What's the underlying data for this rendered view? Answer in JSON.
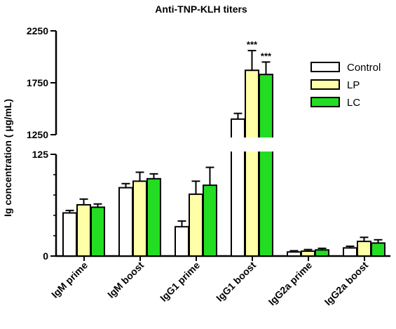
{
  "chart_data": {
    "type": "bar",
    "title": "Anti-TNP-KLH titers",
    "ylabel": "Ig concentration ( μg/mL)",
    "xlabel": "",
    "categories": [
      "IgM prime",
      "IgM boost",
      "IgG1 prime",
      "IgG1 boost",
      "IgG2a prime",
      "IgG2a boost"
    ],
    "series": [
      {
        "name": "Control",
        "color": "#ffffff",
        "values": [
          53,
          84,
          36,
          1400,
          5,
          10
        ],
        "errors": [
          3,
          5,
          7,
          55,
          1.5,
          2
        ]
      },
      {
        "name": "LP",
        "color": "#ffffa8",
        "values": [
          63,
          92,
          76,
          1870,
          6,
          18
        ],
        "errors": [
          7,
          11,
          16,
          190,
          2,
          5
        ]
      },
      {
        "name": "LC",
        "color": "#22dd22",
        "values": [
          60,
          95,
          87,
          1830,
          7.5,
          16
        ],
        "errors": [
          4,
          6,
          22,
          120,
          2,
          4
        ]
      }
    ],
    "y_axis_break": {
      "lower_range": [
        0,
        125
      ],
      "upper_range": [
        1250,
        2250
      ],
      "lower_ticks": [
        "0",
        "125"
      ],
      "upper_ticks": [
        "1250",
        "1750",
        "2250"
      ]
    },
    "annotations": [
      {
        "category": "IgG1 boost",
        "series": "LP",
        "text": "***"
      },
      {
        "category": "IgG1 boost",
        "series": "LC",
        "text": "***"
      }
    ],
    "legend_placement": "right",
    "grid": false
  }
}
